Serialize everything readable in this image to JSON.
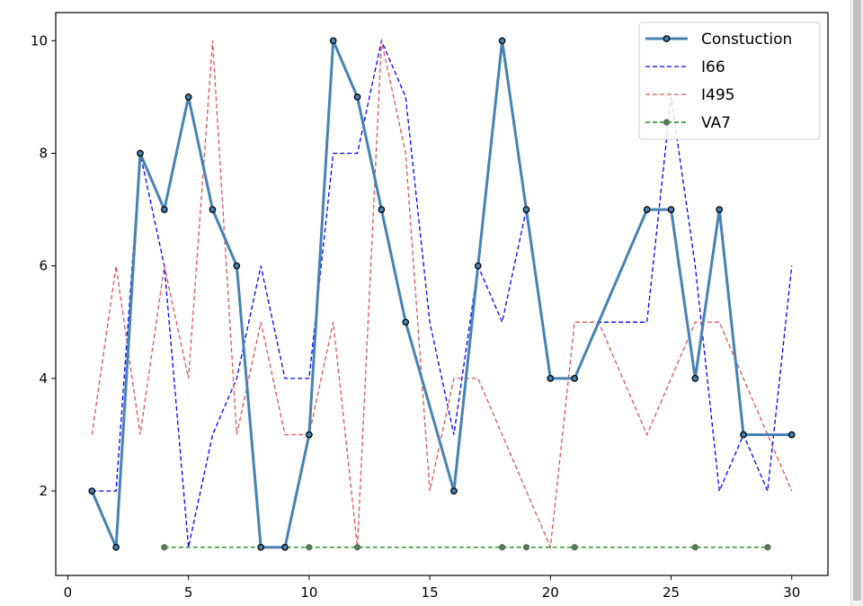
{
  "chart_data": {
    "type": "line",
    "title": "",
    "xlabel": "",
    "ylabel": "",
    "xlim": [
      -0.5,
      31.5
    ],
    "ylim": [
      0.5,
      10.5
    ],
    "xticks": [
      0,
      5,
      10,
      15,
      20,
      25,
      30
    ],
    "yticks": [
      2,
      4,
      6,
      8,
      10
    ],
    "grid": false,
    "legend_position": "top-right",
    "series": [
      {
        "name": "Constuction",
        "color": "#4682b4",
        "style": "solid-markers",
        "x": [
          1,
          2,
          3,
          4,
          5,
          6,
          7,
          8,
          9,
          10,
          11,
          12,
          13,
          14,
          16,
          17,
          18,
          19,
          20,
          21,
          24,
          25,
          26,
          27,
          28,
          30
        ],
        "y": [
          2,
          1,
          8,
          7,
          9,
          7,
          6,
          1,
          1,
          3,
          10,
          9,
          7,
          5,
          2,
          6,
          10,
          7,
          4,
          4,
          7,
          7,
          4,
          7,
          3,
          3
        ]
      },
      {
        "name": "I66",
        "color": "#0000ff",
        "style": "dashed",
        "x": [
          1,
          2,
          3,
          4,
          5,
          6,
          7,
          8,
          9,
          10,
          11,
          12,
          13,
          14,
          15,
          16,
          17,
          18,
          19,
          20,
          21,
          22,
          23,
          24,
          25,
          26,
          27,
          28,
          29,
          30
        ],
        "y": [
          2,
          2,
          8,
          6,
          1,
          3,
          4,
          6,
          4,
          4,
          8,
          8,
          10,
          9,
          5,
          3,
          6,
          5,
          7,
          4,
          4,
          5,
          5,
          5,
          9,
          6,
          2,
          3,
          2,
          6
        ]
      },
      {
        "name": "I495",
        "color": "#dd5555",
        "style": "dashed",
        "x": [
          1,
          2,
          3,
          4,
          5,
          6,
          7,
          8,
          9,
          10,
          11,
          12,
          13,
          14,
          15,
          16,
          17,
          20,
          21,
          22,
          24,
          26,
          27,
          30
        ],
        "y": [
          3,
          6,
          3,
          6,
          4,
          10,
          3,
          5,
          3,
          3,
          5,
          1,
          10,
          8,
          2,
          4,
          4,
          1,
          5,
          5,
          3,
          5,
          5,
          2
        ]
      },
      {
        "name": "VA7",
        "color": "#228b22",
        "style": "dashed-markers",
        "x": [
          4,
          10,
          12,
          18,
          19,
          21,
          26,
          29
        ],
        "y": [
          1,
          1,
          1,
          1,
          1,
          1,
          1,
          1
        ]
      }
    ]
  }
}
